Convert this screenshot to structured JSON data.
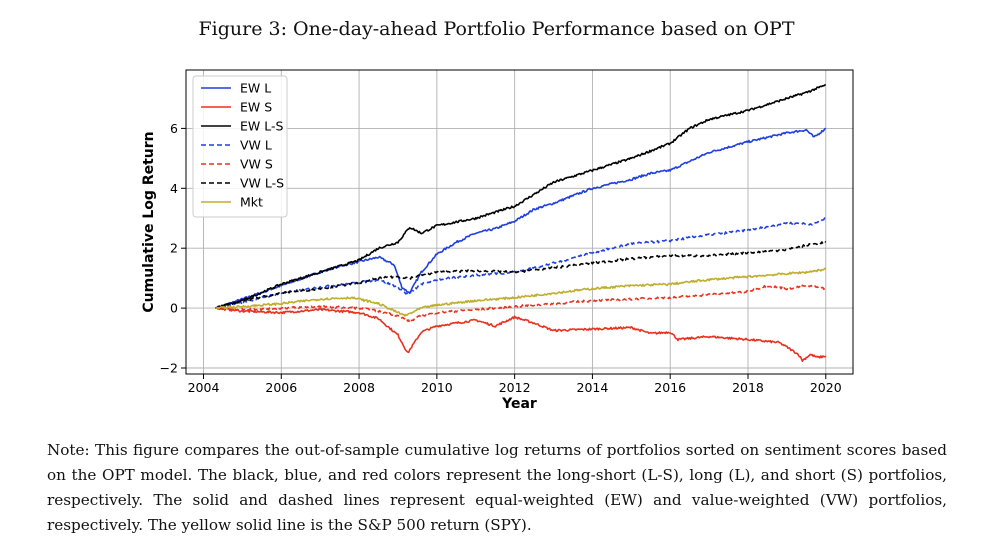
{
  "figure": {
    "title": "Figure 3: One-day-ahead Portfolio Performance based on OPT",
    "note": "Note: This figure compares the out-of-sample cumulative log returns of portfolios sorted on sentiment scores based on the OPT model. The black, blue, and red colors represent the long-short (L-S), long (L), and short (S) portfolios, respectively. The solid and dashed lines represent equal-weighted (EW) and value-weighted (VW) portfolios, respectively. The yellow solid line is the S&P 500 return (SPY)."
  },
  "chart_data": {
    "type": "line",
    "xlabel": "Year",
    "ylabel": "Cumulative Log Return",
    "xlim": [
      2003.55,
      2020.7
    ],
    "ylim": [
      -2.2,
      7.95
    ],
    "xticks": [
      2004,
      2006,
      2008,
      2010,
      2012,
      2014,
      2016,
      2018,
      2020
    ],
    "yticks": [
      -2,
      0,
      2,
      4,
      6
    ],
    "grid": true,
    "legend_position": "upper-left",
    "series": [
      {
        "name": "EW L",
        "color": "#1f3fe0",
        "style": "solid",
        "points": [
          [
            2004.3,
            0
          ],
          [
            2005,
            0.3
          ],
          [
            2006,
            0.75
          ],
          [
            2007,
            1.2
          ],
          [
            2007.5,
            1.4
          ],
          [
            2008,
            1.55
          ],
          [
            2008.5,
            1.7
          ],
          [
            2008.9,
            1.45
          ],
          [
            2009.1,
            0.7
          ],
          [
            2009.3,
            0.5
          ],
          [
            2009.6,
            1.2
          ],
          [
            2010,
            1.8
          ],
          [
            2010.5,
            2.2
          ],
          [
            2011,
            2.5
          ],
          [
            2011.5,
            2.65
          ],
          [
            2012,
            2.9
          ],
          [
            2012.5,
            3.3
          ],
          [
            2013,
            3.5
          ],
          [
            2014,
            4.0
          ],
          [
            2015,
            4.3
          ],
          [
            2015.5,
            4.5
          ],
          [
            2016,
            4.6
          ],
          [
            2016.5,
            4.9
          ],
          [
            2017,
            5.2
          ],
          [
            2018,
            5.55
          ],
          [
            2019,
            5.85
          ],
          [
            2019.5,
            5.95
          ],
          [
            2019.7,
            5.7
          ],
          [
            2020,
            6.0
          ]
        ]
      },
      {
        "name": "EW S",
        "color": "#e8321e",
        "style": "solid",
        "points": [
          [
            2004.3,
            0
          ],
          [
            2005,
            -0.1
          ],
          [
            2006,
            -0.15
          ],
          [
            2007,
            -0.05
          ],
          [
            2008,
            -0.15
          ],
          [
            2008.5,
            -0.35
          ],
          [
            2009,
            -0.9
          ],
          [
            2009.25,
            -1.5
          ],
          [
            2009.6,
            -0.8
          ],
          [
            2010,
            -0.6
          ],
          [
            2011,
            -0.4
          ],
          [
            2011.5,
            -0.6
          ],
          [
            2012,
            -0.3
          ],
          [
            2012.5,
            -0.5
          ],
          [
            2013,
            -0.75
          ],
          [
            2014,
            -0.7
          ],
          [
            2015,
            -0.65
          ],
          [
            2015.5,
            -0.85
          ],
          [
            2016,
            -0.8
          ],
          [
            2016.2,
            -1.05
          ],
          [
            2017,
            -0.95
          ],
          [
            2018,
            -1.05
          ],
          [
            2018.8,
            -1.15
          ],
          [
            2019,
            -1.3
          ],
          [
            2019.3,
            -1.55
          ],
          [
            2019.4,
            -1.75
          ],
          [
            2019.6,
            -1.55
          ],
          [
            2019.8,
            -1.65
          ],
          [
            2020,
            -1.6
          ]
        ]
      },
      {
        "name": "EW L-S",
        "color": "#000000",
        "style": "solid",
        "points": [
          [
            2004.3,
            0
          ],
          [
            2005,
            0.25
          ],
          [
            2006,
            0.8
          ],
          [
            2007,
            1.2
          ],
          [
            2008,
            1.6
          ],
          [
            2008.5,
            2.0
          ],
          [
            2009,
            2.2
          ],
          [
            2009.3,
            2.7
          ],
          [
            2009.6,
            2.5
          ],
          [
            2010,
            2.75
          ],
          [
            2011,
            3.0
          ],
          [
            2012,
            3.4
          ],
          [
            2013,
            4.2
          ],
          [
            2014,
            4.6
          ],
          [
            2015,
            5.0
          ],
          [
            2016,
            5.5
          ],
          [
            2016.5,
            6.0
          ],
          [
            2017,
            6.3
          ],
          [
            2018,
            6.6
          ],
          [
            2019,
            7.0
          ],
          [
            2019.5,
            7.2
          ],
          [
            2020,
            7.45
          ]
        ]
      },
      {
        "name": "VW L",
        "color": "#1f3fe0",
        "style": "dashed",
        "points": [
          [
            2004.3,
            0
          ],
          [
            2005,
            0.2
          ],
          [
            2006,
            0.5
          ],
          [
            2007,
            0.7
          ],
          [
            2008,
            0.85
          ],
          [
            2008.5,
            0.95
          ],
          [
            2009,
            0.7
          ],
          [
            2009.25,
            0.45
          ],
          [
            2009.6,
            0.8
          ],
          [
            2010,
            0.95
          ],
          [
            2011,
            1.1
          ],
          [
            2012,
            1.2
          ],
          [
            2013,
            1.5
          ],
          [
            2014,
            1.85
          ],
          [
            2015,
            2.15
          ],
          [
            2016,
            2.25
          ],
          [
            2017,
            2.45
          ],
          [
            2018,
            2.6
          ],
          [
            2019,
            2.85
          ],
          [
            2019.7,
            2.8
          ],
          [
            2020,
            3.0
          ]
        ]
      },
      {
        "name": "VW S",
        "color": "#e8321e",
        "style": "dashed",
        "points": [
          [
            2004.3,
            0
          ],
          [
            2005,
            -0.05
          ],
          [
            2006,
            0
          ],
          [
            2007,
            0.05
          ],
          [
            2008,
            0
          ],
          [
            2008.5,
            -0.1
          ],
          [
            2009,
            -0.25
          ],
          [
            2009.3,
            -0.45
          ],
          [
            2009.6,
            -0.25
          ],
          [
            2010,
            -0.15
          ],
          [
            2011,
            -0.05
          ],
          [
            2012,
            0.05
          ],
          [
            2013,
            0.15
          ],
          [
            2014,
            0.25
          ],
          [
            2015,
            0.3
          ],
          [
            2016,
            0.35
          ],
          [
            2017,
            0.45
          ],
          [
            2018,
            0.55
          ],
          [
            2018.5,
            0.75
          ],
          [
            2019,
            0.65
          ],
          [
            2019.5,
            0.75
          ],
          [
            2020,
            0.65
          ]
        ]
      },
      {
        "name": "VW L-S",
        "color": "#000000",
        "style": "dashed",
        "points": [
          [
            2004.3,
            0
          ],
          [
            2005,
            0.25
          ],
          [
            2006,
            0.5
          ],
          [
            2007,
            0.65
          ],
          [
            2008,
            0.85
          ],
          [
            2008.5,
            1.0
          ],
          [
            2009,
            1.05
          ],
          [
            2009.3,
            1.0
          ],
          [
            2009.6,
            1.1
          ],
          [
            2010,
            1.2
          ],
          [
            2011,
            1.25
          ],
          [
            2012,
            1.2
          ],
          [
            2013,
            1.35
          ],
          [
            2014,
            1.5
          ],
          [
            2015,
            1.65
          ],
          [
            2016,
            1.75
          ],
          [
            2017,
            1.75
          ],
          [
            2018,
            1.85
          ],
          [
            2019,
            1.95
          ],
          [
            2019.5,
            2.1
          ],
          [
            2020,
            2.2
          ]
        ]
      },
      {
        "name": "Mkt",
        "color": "#bfae2e",
        "style": "solid",
        "points": [
          [
            2004.3,
            0
          ],
          [
            2005,
            0.05
          ],
          [
            2006,
            0.15
          ],
          [
            2007,
            0.3
          ],
          [
            2007.8,
            0.35
          ],
          [
            2008,
            0.3
          ],
          [
            2008.5,
            0.15
          ],
          [
            2009,
            -0.15
          ],
          [
            2009.2,
            -0.25
          ],
          [
            2009.6,
            0
          ],
          [
            2010,
            0.1
          ],
          [
            2011,
            0.25
          ],
          [
            2012,
            0.35
          ],
          [
            2013,
            0.5
          ],
          [
            2014,
            0.65
          ],
          [
            2015,
            0.75
          ],
          [
            2016,
            0.8
          ],
          [
            2017,
            0.95
          ],
          [
            2018,
            1.05
          ],
          [
            2019,
            1.15
          ],
          [
            2019.5,
            1.2
          ],
          [
            2020,
            1.3
          ]
        ]
      }
    ]
  }
}
